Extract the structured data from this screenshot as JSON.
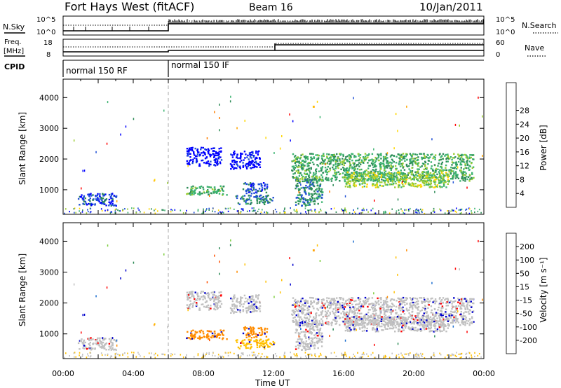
{
  "header": {
    "title": "Fort Hays West (fitACF)",
    "beam": "Beam 16",
    "date": "10/Jan/2011"
  },
  "status_panels": {
    "nsky_label": "N.Sky",
    "nsearch_label": "N.Search",
    "nsky_ticks": [
      "10^5",
      "10^0"
    ],
    "nsearch_ticks": [
      "10^5",
      "10^0"
    ],
    "freq_label_line1": "Freq.",
    "freq_label_line2": "[MHz]",
    "freq_ticks": [
      "18",
      "8"
    ],
    "nave_label": "Nave",
    "nave_ticks": [
      "60",
      "0"
    ],
    "cpid_label": "CPID",
    "cpid_segments": [
      {
        "label": "normal 150 RF",
        "start_hour": 0
      },
      {
        "label": "normal 150 IF",
        "start_hour": 6
      }
    ]
  },
  "colors": {
    "power_scale": [
      "#0000ff",
      "#1f4fd6",
      "#2e8b57",
      "#3cb371",
      "#9acd32",
      "#ffd700",
      "#ffa500",
      "#ff7f00",
      "#ff0000"
    ],
    "velocity_scale": [
      "#0000cd",
      "#1e6fd0",
      "#2e8b57",
      "#7ccd3c",
      "#c0c0c0",
      "#ffc000",
      "#ff8c00",
      "#ff5000",
      "#ff0000"
    ],
    "gray_velocity": "#c8c8c8"
  },
  "chart_data": [
    {
      "type": "heatmap",
      "name": "Power",
      "ylabel": "Slant Range [km]",
      "yticks": [
        1000,
        2000,
        3000,
        4000
      ],
      "ylim": [
        200,
        4600
      ],
      "xlim_hours": [
        0,
        24
      ],
      "colorbar_label": "Power [dB]",
      "colorbar_ticks": [
        "4",
        "8",
        "12",
        "16",
        "20",
        "24",
        "28"
      ],
      "regions": [
        {
          "t0": 0.8,
          "t1": 3.0,
          "r0": 500,
          "r1": 900,
          "level": 1
        },
        {
          "t0": 7.0,
          "t1": 9.0,
          "r0": 1800,
          "r1": 2400,
          "level": 0
        },
        {
          "t0": 7.0,
          "t1": 9.3,
          "r0": 850,
          "r1": 1150,
          "level": 3
        },
        {
          "t0": 9.5,
          "t1": 11.2,
          "r0": 1700,
          "r1": 2300,
          "level": 0
        },
        {
          "t0": 9.8,
          "t1": 12.0,
          "r0": 550,
          "r1": 850,
          "level": 2
        },
        {
          "t0": 10.2,
          "t1": 11.6,
          "r0": 900,
          "r1": 1250,
          "level": 1
        },
        {
          "t0": 13.2,
          "t1": 14.8,
          "r0": 500,
          "r1": 1400,
          "level": 2
        },
        {
          "t0": 13.0,
          "t1": 23.4,
          "r0": 1300,
          "r1": 2200,
          "level": 3
        },
        {
          "t0": 16.0,
          "t1": 22.0,
          "r0": 1100,
          "r1": 1600,
          "level": 4
        }
      ]
    },
    {
      "type": "heatmap",
      "name": "Velocity",
      "ylabel": "Slant Range [km]",
      "xlabel": "Time UT",
      "yticks": [
        1000,
        2000,
        3000,
        4000
      ],
      "ylim": [
        200,
        4600
      ],
      "xlim_hours": [
        0,
        24
      ],
      "xtick_labels": [
        "00:00",
        "04:00",
        "08:00",
        "12:00",
        "16:00",
        "20:00",
        "00:00"
      ],
      "colorbar_label": "Velocity [m s⁻¹]",
      "colorbar_ticks": [
        "-200",
        "-100",
        "-50",
        "-15",
        "15",
        "50",
        "100",
        "200"
      ],
      "regions": [
        {
          "t0": 0.8,
          "t1": 3.0,
          "r0": 500,
          "r1": 900,
          "level": 4
        },
        {
          "t0": 7.0,
          "t1": 9.0,
          "r0": 1800,
          "r1": 2400,
          "level": 4
        },
        {
          "t0": 7.0,
          "t1": 9.3,
          "r0": 850,
          "r1": 1150,
          "level": 6
        },
        {
          "t0": 9.5,
          "t1": 11.2,
          "r0": 1700,
          "r1": 2300,
          "level": 4
        },
        {
          "t0": 9.8,
          "t1": 12.0,
          "r0": 550,
          "r1": 850,
          "level": 5
        },
        {
          "t0": 10.2,
          "t1": 11.6,
          "r0": 900,
          "r1": 1250,
          "level": 6
        },
        {
          "t0": 13.2,
          "t1": 14.8,
          "r0": 500,
          "r1": 1400,
          "level": 4
        },
        {
          "t0": 13.0,
          "t1": 23.4,
          "r0": 1300,
          "r1": 2200,
          "level": 4
        },
        {
          "t0": 16.0,
          "t1": 22.0,
          "r0": 1100,
          "r1": 1600,
          "level": 4
        }
      ]
    }
  ]
}
